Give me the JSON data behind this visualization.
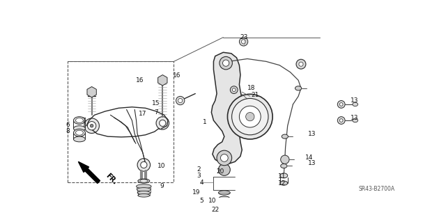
{
  "bg_color": "#ffffff",
  "diagram_code": "SR43-B2700A",
  "direction_label": "FR.",
  "fig_width": 6.4,
  "fig_height": 3.19,
  "dpi": 100,
  "label_fontsize": 6.5,
  "label_color": "#111111",
  "diagram_fontsize": 5.5,
  "line_color": "#2a2a2a",
  "light_gray": "#aaaaaa",
  "mid_gray": "#777777"
}
